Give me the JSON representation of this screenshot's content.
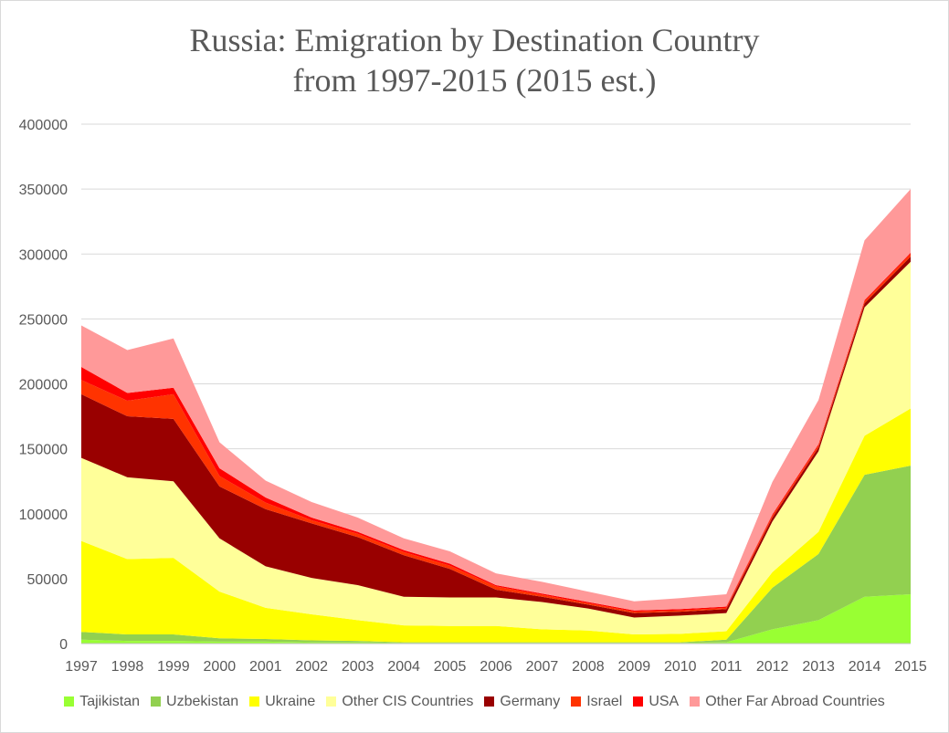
{
  "chart_data": {
    "type": "area",
    "stacked": true,
    "title_lines": [
      "Russia: Emigration by Destination Country",
      "from 1997-2015 (2015 est.)"
    ],
    "xlabel": "",
    "ylabel": "",
    "ylim": [
      0,
      400000
    ],
    "y_ticks": [
      "0",
      "50000",
      "100000",
      "150000",
      "200000",
      "250000",
      "300000",
      "350000",
      "400000"
    ],
    "grid": true,
    "legend_position": "bottom",
    "categories": [
      "1997",
      "1998",
      "1999",
      "2000",
      "2001",
      "2002",
      "2003",
      "2004",
      "2005",
      "2006",
      "2007",
      "2008",
      "2009",
      "2010",
      "2011",
      "2012",
      "2013",
      "2014",
      "2015"
    ],
    "series": [
      {
        "name": "Tajikistan",
        "color": "#99ff33",
        "values": [
          3000,
          2000,
          2000,
          1500,
          1500,
          1000,
          1000,
          500,
          500,
          500,
          500,
          500,
          500,
          500,
          1000,
          11000,
          18000,
          36000,
          38000
        ]
      },
      {
        "name": "Uzbekistan",
        "color": "#92d050",
        "values": [
          6000,
          5000,
          5000,
          2500,
          2000,
          1500,
          1000,
          500,
          500,
          500,
          500,
          500,
          500,
          500,
          2000,
          32000,
          51000,
          94000,
          99000
        ]
      },
      {
        "name": "Ukraine",
        "color": "#ffff00",
        "values": [
          70000,
          58000,
          59000,
          36000,
          24000,
          20000,
          16000,
          13000,
          12500,
          12500,
          10000,
          9000,
          6000,
          6500,
          6500,
          12000,
          17000,
          30000,
          44000
        ]
      },
      {
        "name": "Other CIS Countries",
        "color": "#ffff99",
        "values": [
          64000,
          63000,
          59000,
          41000,
          32000,
          28000,
          27000,
          22000,
          22000,
          22000,
          21000,
          17000,
          13000,
          14000,
          14000,
          39000,
          62000,
          99000,
          113000
        ]
      },
      {
        "name": "Germany",
        "color": "#990000",
        "values": [
          49000,
          47000,
          48000,
          40000,
          44000,
          42000,
          37000,
          32000,
          22000,
          6000,
          4000,
          3000,
          3500,
          3000,
          3000,
          3000,
          3000,
          3000,
          4000
        ]
      },
      {
        "name": "Israel",
        "color": "#ff3300",
        "values": [
          11000,
          12000,
          19000,
          8000,
          5000,
          2500,
          2500,
          2500,
          2500,
          2500,
          1500,
          1000,
          1000,
          1000,
          1000,
          1500,
          1500,
          1500,
          2000
        ]
      },
      {
        "name": "USA",
        "color": "#ff0000",
        "values": [
          10000,
          6000,
          5000,
          6000,
          4000,
          2000,
          1500,
          1500,
          1500,
          1000,
          1000,
          1000,
          1000,
          1000,
          1000,
          1000,
          1000,
          1000,
          1000
        ]
      },
      {
        "name": "Other Far Abroad Countries",
        "color": "#ff9999",
        "values": [
          32000,
          33000,
          38000,
          20000,
          13000,
          12000,
          11000,
          9000,
          9500,
          9000,
          9000,
          8000,
          7000,
          8500,
          9500,
          25000,
          34000,
          46000,
          49000
        ]
      }
    ]
  }
}
